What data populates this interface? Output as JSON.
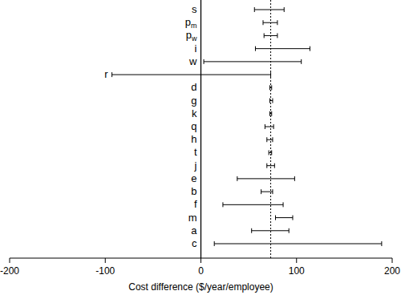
{
  "chart_data": {
    "type": "tornado",
    "orientation": "horizontal",
    "x_label": "Cost difference ($/year/employee)",
    "categories": [
      "s",
      "pm",
      "pw",
      "i",
      "w",
      "r",
      "d",
      "g",
      "k",
      "q",
      "h",
      "t",
      "j",
      "e",
      "b",
      "f",
      "m",
      "a",
      "c"
    ],
    "low": [
      56,
      65,
      66,
      57,
      3,
      -93,
      72,
      72,
      72,
      67,
      69,
      71,
      69,
      38,
      63,
      23,
      78,
      53,
      14
    ],
    "high": [
      87,
      80,
      80,
      114,
      105,
      73,
      74,
      75,
      74,
      76,
      75,
      74,
      77,
      98,
      75,
      86,
      96,
      92,
      189
    ],
    "base_value": 73,
    "xlim": [
      -200,
      200
    ],
    "xticks": [
      -200,
      -100,
      0,
      100,
      200
    ],
    "color": "#000000"
  }
}
